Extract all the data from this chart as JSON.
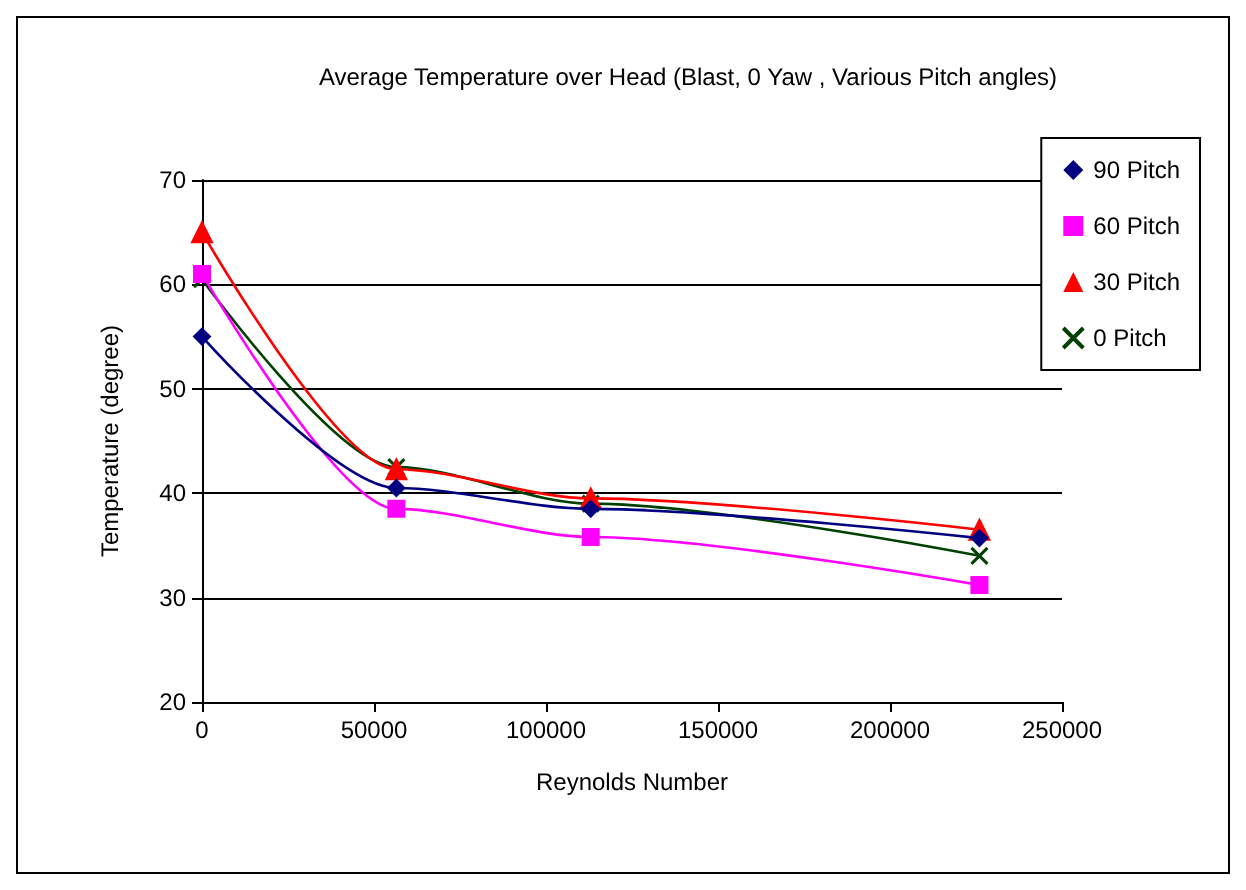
{
  "chart_data": {
    "type": "line",
    "title": "Average Temperature over Head (Blast, 0 Yaw , Various Pitch angles)",
    "xlabel": "Reynolds Number",
    "ylabel": "Temperature (degree)",
    "x": [
      0,
      56500,
      113000,
      226000
    ],
    "series": [
      {
        "name": "90 Pitch",
        "color": "#000080",
        "marker": "diamond",
        "values": [
          55,
          40.5,
          38.5,
          35.7
        ]
      },
      {
        "name": "60 Pitch",
        "color": "#ff00ff",
        "marker": "square",
        "values": [
          61,
          38.5,
          35.8,
          31.2
        ]
      },
      {
        "name": "30 Pitch",
        "color": "#ff0000",
        "marker": "triangle",
        "values": [
          65,
          42.3,
          39.5,
          36.5
        ]
      },
      {
        "name": "0 Pitch",
        "color": "#004000",
        "marker": "cross",
        "values": [
          60.5,
          42.5,
          39,
          34
        ]
      }
    ],
    "xlim": [
      0,
      250000
    ],
    "xticks": [
      0,
      50000,
      100000,
      150000,
      200000,
      250000
    ],
    "ylim": [
      20,
      70
    ],
    "yticks": [
      20,
      30,
      40,
      50,
      60,
      70
    ],
    "grid": "y",
    "legend": "right"
  }
}
